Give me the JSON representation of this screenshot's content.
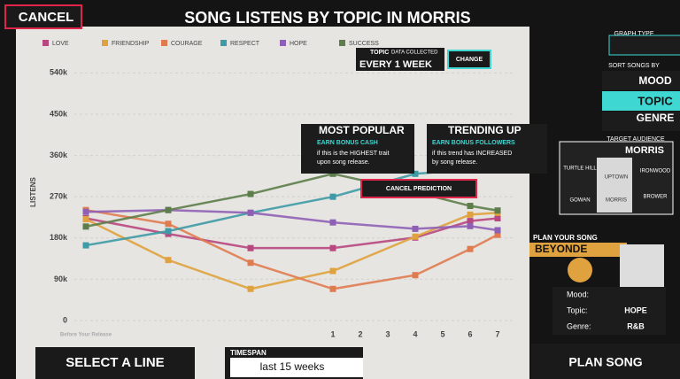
{
  "header": {
    "cancel": "CANCEL",
    "title": "SONG LISTENS BY TOPIC IN MORRIS"
  },
  "data_collected": {
    "topic": "TOPIC",
    "caption": "DATA COLLECTED",
    "interval": "EVERY 1 WEEK",
    "change": "CHANGE"
  },
  "popups": {
    "most_popular": {
      "title": "MOST POPULAR",
      "reward": "EARN BONUS CASH",
      "text_1": "if this is the HIGHEST trait",
      "text_2": "upon song release."
    },
    "trending_up": {
      "title": "TRENDING UP",
      "reward": "EARN BONUS FOLLOWERS",
      "text_1": "if this trend has INCREASED",
      "text_2": "by song release."
    },
    "cancel_prediction": "CANCEL PREDICTION"
  },
  "side_panel": {
    "graph_type": "GRAPH TYPE",
    "sort_by": "SORT SONGS BY",
    "sort_options": [
      "MOOD",
      "TOPIC",
      "GENRE"
    ],
    "target_audience": "TARGET AUDIENCE",
    "audience": "MORRIS",
    "districts": [
      "TURTLE HILL",
      "UPTOWN",
      "IRONWOOD",
      "GOWAN",
      "MORRIS",
      "BROWER"
    ]
  },
  "plan": {
    "heading": "PLAN YOUR SONG",
    "artist": "BEYONDE",
    "fields": [
      {
        "label": "Mood:"
      },
      {
        "label": "Topic:",
        "value": "HOPE"
      },
      {
        "label": "Genre:",
        "value": "R&B"
      }
    ]
  },
  "footer": {
    "select_line": "SELECT A LINE",
    "timespan": "TIMESPAN",
    "timespan_value": "last 15 weeks",
    "plan_song": "PLAN SONG"
  },
  "chart_data": {
    "type": "line",
    "y_label": "LISTENS",
    "x": [
      -8,
      -5,
      -2,
      1,
      4,
      6,
      7
    ],
    "xlim": [
      -9,
      8
    ],
    "xticks": [
      {
        "value": -8,
        "label": "Before Your Release"
      },
      1,
      2,
      3,
      4,
      5,
      6,
      7
    ],
    "ylim": [
      0,
      560
    ],
    "yticks": [
      0,
      {
        "value": 90,
        "label": "90k"
      },
      {
        "value": 180,
        "label": "180k"
      },
      {
        "value": 270,
        "label": "270k"
      },
      {
        "value": 360,
        "label": "360k"
      },
      {
        "value": 450,
        "label": "450k"
      },
      {
        "value": 540,
        "label": "540k"
      }
    ],
    "grid": true,
    "series": [
      {
        "name": "LOVE",
        "color": "#b8477f",
        "values": [
          223,
          189,
          158,
          158,
          181,
          217,
          223
        ]
      },
      {
        "name": "FRIENDSHIP",
        "color": "#e0a23e",
        "values": [
          221,
          132,
          69,
          108,
          183,
          231,
          235
        ]
      },
      {
        "name": "COURAGE",
        "color": "#e07b50",
        "values": [
          241,
          211,
          126,
          69,
          99,
          156,
          187
        ]
      },
      {
        "name": "RESPECT",
        "color": "#3e9aa6",
        "values": [
          164,
          195,
          235,
          270,
          320,
          329,
          339
        ]
      },
      {
        "name": "HOPE",
        "color": "#8f5fb5",
        "values": [
          237,
          241,
          235,
          214,
          200,
          206,
          197
        ]
      },
      {
        "name": "SUCCESS",
        "color": "#5d7d4a",
        "values": [
          205,
          241,
          276,
          320,
          280,
          250,
          240
        ]
      }
    ]
  }
}
